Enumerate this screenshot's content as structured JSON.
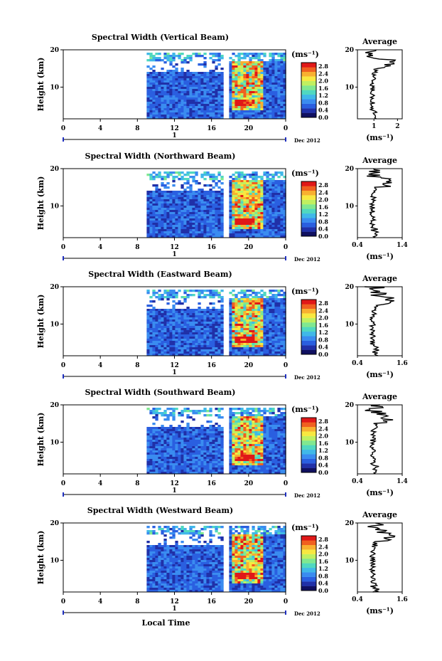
{
  "chart_data": {
    "type": "heatmap",
    "x_axis": {
      "label": "Local Time",
      "range": [
        0,
        24
      ],
      "ticks": [
        "0",
        "4",
        "8",
        "12",
        "16",
        "20",
        "0"
      ],
      "day_marker": "1",
      "date_label": "Dec 2012"
    },
    "y_axis": {
      "label": "Height (km)",
      "range": [
        1.5,
        20
      ],
      "ticks": [
        "10",
        "20"
      ]
    },
    "colorbar": {
      "unit": "(ms⁻¹)",
      "ticks": [
        "0.0",
        "0.4",
        "0.8",
        "1.2",
        "1.6",
        "2.0",
        "2.4",
        "2.8"
      ],
      "range": [
        0.0,
        3.0
      ],
      "colors": [
        "#101060",
        "#2030a8",
        "#2a5fe0",
        "#3a8cf0",
        "#40b8e8",
        "#50d8c0",
        "#80e890",
        "#c0f060",
        "#f8e840",
        "#f8b030",
        "#f06020",
        "#e01818"
      ]
    },
    "data_gap_hours": [
      17.5,
      17.8
    ],
    "data_start_hour": 9,
    "panels": [
      {
        "title": "Spectral Width (Vertical Beam)",
        "average": {
          "title": "Average",
          "xlabel": "(ms⁻¹)",
          "xticks": [
            "1",
            "2"
          ],
          "xlim": [
            0.3,
            2.2
          ]
        }
      },
      {
        "title": "Spectral Width (Northward Beam)",
        "average": {
          "title": "Average",
          "xlabel": "(ms⁻¹)",
          "xticks": [
            "0.4",
            "1.4"
          ],
          "xlim": [
            0.4,
            1.4
          ]
        }
      },
      {
        "title": "Spectral Width (Eastward Beam)",
        "average": {
          "title": "Average",
          "xlabel": "(ms⁻¹)",
          "xticks": [
            "0.4",
            "1.6"
          ],
          "xlim": [
            0.4,
            1.6
          ]
        }
      },
      {
        "title": "Spectral Width (Southward Beam)",
        "average": {
          "title": "Average",
          "xlabel": "(ms⁻¹)",
          "xticks": [
            "0.4",
            "1.4"
          ],
          "xlim": [
            0.4,
            1.4
          ]
        }
      },
      {
        "title": "Spectral Width (Westward Beam)",
        "average": {
          "title": "Average",
          "xlabel": "(ms⁻¹)",
          "xticks": [
            "0.4",
            "1.6"
          ],
          "xlim": [
            0.4,
            1.6
          ]
        }
      }
    ]
  }
}
